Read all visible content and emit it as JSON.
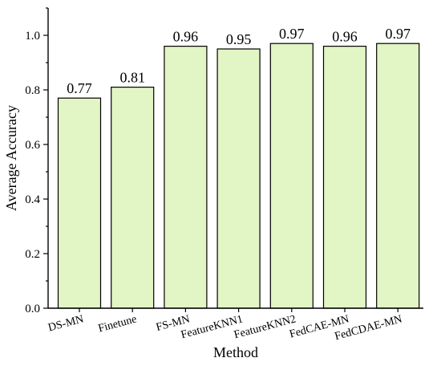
{
  "chart_data": {
    "type": "bar",
    "categories": [
      "DS-MN",
      "Finetune",
      "FS-MN",
      "FeatureKNN1",
      "FeatureKNN2",
      "FedCAE-MN",
      "FedCDAE-MN"
    ],
    "values": [
      0.77,
      0.81,
      0.96,
      0.95,
      0.97,
      0.96,
      0.97
    ],
    "value_labels": [
      "0.77",
      "0.81",
      "0.96",
      "0.95",
      "0.97",
      "0.96",
      "0.97"
    ],
    "yticks": [
      "0.0",
      "0.2",
      "0.4",
      "0.6",
      "0.8",
      "1.0"
    ],
    "ytick_values": [
      0.0,
      0.2,
      0.4,
      0.6,
      0.8,
      1.0
    ],
    "title": "",
    "xlabel": "Method",
    "ylabel": "Average Accuracy",
    "ylim": [
      0,
      1.1
    ],
    "grid": false,
    "bar_color": "#e2f5c4",
    "bar_edge_color": "#000000"
  }
}
